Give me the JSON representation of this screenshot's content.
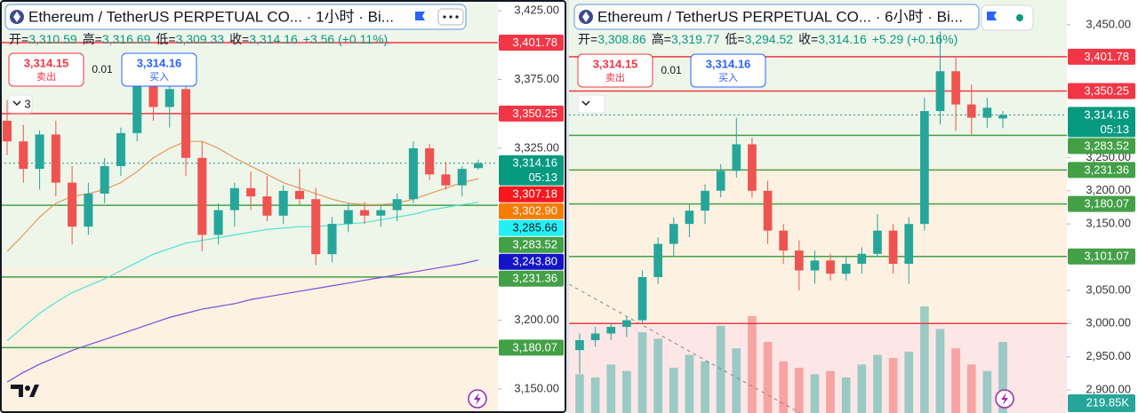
{
  "chart_data": [
    {
      "type": "candlestick",
      "title": "Ethereum / TetherUS PERPETUAL CO... · 1小时 · Bi...",
      "ohlc_labels": [
        "开=",
        "高=",
        "低=",
        "收="
      ],
      "ohlc_value_labels": [
        "3,310.59",
        "3,316.69",
        "3,309.33",
        "3,314.16"
      ],
      "change_label": "+3.56 (+0.11%)",
      "sell_price": "3,314.15",
      "sell_label": "卖出",
      "spread": "0.01",
      "buy_price": "3,314.16",
      "buy_label": "买入",
      "indicator_count": "3",
      "countdown": "05:13",
      "ylim": [
        3132.5,
        3432.8
      ],
      "yticks": [
        {
          "value": 3425,
          "label": "3,425.00"
        },
        {
          "value": 3375,
          "label": "3,375.00"
        },
        {
          "value": 3325,
          "label": "3,325.00"
        },
        {
          "value": 3200,
          "label": "3,200.00"
        },
        {
          "value": 3150,
          "label": "3,150.00"
        }
      ],
      "up_color": "#26a69a",
      "down_color": "#ef5350",
      "candles": [
        [
          3345,
          3360,
          3320,
          3330
        ],
        [
          3330,
          3342,
          3300,
          3310
        ],
        [
          3310,
          3338,
          3295,
          3335
        ],
        [
          3335,
          3345,
          3290,
          3300
        ],
        [
          3300,
          3312,
          3255,
          3268
        ],
        [
          3268,
          3300,
          3262,
          3292
        ],
        [
          3292,
          3318,
          3285,
          3312
        ],
        [
          3312,
          3340,
          3305,
          3336
        ],
        [
          3336,
          3385,
          3330,
          3372
        ],
        [
          3372,
          3380,
          3345,
          3355
        ],
        [
          3355,
          3378,
          3340,
          3368
        ],
        [
          3368,
          3372,
          3305,
          3318
        ],
        [
          3318,
          3330,
          3250,
          3262
        ],
        [
          3262,
          3285,
          3255,
          3280
        ],
        [
          3280,
          3300,
          3268,
          3296
        ],
        [
          3296,
          3308,
          3280,
          3290
        ],
        [
          3290,
          3305,
          3272,
          3276
        ],
        [
          3276,
          3298,
          3270,
          3294
        ],
        [
          3294,
          3310,
          3284,
          3288
        ],
        [
          3288,
          3296,
          3240,
          3248
        ],
        [
          3248,
          3275,
          3242,
          3270
        ],
        [
          3270,
          3285,
          3264,
          3280
        ],
        [
          3280,
          3286,
          3270,
          3276
        ],
        [
          3276,
          3284,
          3268,
          3280
        ],
        [
          3280,
          3292,
          3272,
          3288
        ],
        [
          3288,
          3330,
          3285,
          3325
        ],
        [
          3325,
          3328,
          3302,
          3306
        ],
        [
          3306,
          3315,
          3295,
          3298
        ],
        [
          3298,
          3312,
          3290,
          3310
        ],
        [
          3310.59,
          3316.69,
          3309.33,
          3314.16
        ]
      ],
      "ma_lines": [
        {
          "color": "#e39a5c",
          "values": [
            3250,
            3262,
            3275,
            3285,
            3290,
            3292,
            3295,
            3300,
            3308,
            3318,
            3325,
            3330,
            3330,
            3325,
            3318,
            3312,
            3306,
            3300,
            3296,
            3292,
            3288,
            3285,
            3284,
            3284,
            3285,
            3288,
            3292,
            3296,
            3300,
            3302.9
          ]
        },
        {
          "color": "#4fe3d0",
          "values": [
            3185,
            3195,
            3205,
            3213,
            3220,
            3225,
            3230,
            3236,
            3242,
            3248,
            3252,
            3256,
            3258,
            3260,
            3262,
            3264,
            3266,
            3267,
            3268,
            3268,
            3269,
            3270,
            3271,
            3273,
            3275,
            3277,
            3280,
            3282,
            3284,
            3285.66
          ]
        },
        {
          "color": "#7c4ddb",
          "values": [
            3155,
            3162,
            3168,
            3173,
            3178,
            3182,
            3186,
            3190,
            3194,
            3198,
            3202,
            3205,
            3208,
            3210,
            3212,
            3215,
            3217,
            3219,
            3221,
            3223,
            3225,
            3227,
            3229,
            3231,
            3233,
            3235,
            3237,
            3239,
            3241,
            3243.8
          ]
        }
      ],
      "price_lines": [
        {
          "value": 3401.78,
          "label": "3,401.78",
          "color": "#f23645",
          "line": true
        },
        {
          "value": 3350.25,
          "label": "3,350.25",
          "color": "#f23645",
          "line": true
        },
        {
          "value": 3314.16,
          "label": "3,314.16",
          "color": "#089981",
          "line": true,
          "current": true
        },
        {
          "value": 3307.18,
          "label": "3,307.18",
          "color": "#f7171f",
          "line": false
        },
        {
          "value": 3302.9,
          "label": "3,302.90",
          "color": "#f57c00",
          "line": false
        },
        {
          "value": 3285.66,
          "label": "3,285.66",
          "color": "#22f0f5",
          "text_color": "#131722",
          "line": false
        },
        {
          "value": 3283.52,
          "label": "3,283.52",
          "color": "#43a047",
          "line": true
        },
        {
          "value": 3243.8,
          "label": "3,243.80",
          "color": "#1414c8",
          "line": false
        },
        {
          "value": 3231.36,
          "label": "3,231.36",
          "color": "#43a047",
          "line": true
        },
        {
          "value": 3180.07,
          "label": "3,180.07",
          "color": "#43a047",
          "line": true
        }
      ]
    },
    {
      "type": "candlestick",
      "title": "Ethereum / TetherUS PERPETUAL CO... · 6小时 · Bi...",
      "ohlc_labels": [
        "开=",
        "高=",
        "低=",
        "收="
      ],
      "ohlc_value_labels": [
        "3,308.86",
        "3,319.77",
        "3,294.52",
        "3,314.16"
      ],
      "change_label": "+5.29 (+0.16%)",
      "sell_price": "3,314.15",
      "sell_label": "卖出",
      "spread": "0.01",
      "buy_price": "3,314.16",
      "buy_label": "买入",
      "countdown": "05:13",
      "ylim": [
        2865.3,
        3487.3
      ],
      "yticks": [
        {
          "value": 3450,
          "label": "3,450.00"
        },
        {
          "value": 3250,
          "label": "3,250.00"
        },
        {
          "value": 3200,
          "label": "3,200.00"
        },
        {
          "value": 3150,
          "label": "3,150.00"
        },
        {
          "value": 3050,
          "label": "3,050.00"
        },
        {
          "value": 3000,
          "label": "3,000.00"
        },
        {
          "value": 2950,
          "label": "2,950.00"
        },
        {
          "value": 2900,
          "label": "2,900.00"
        }
      ],
      "up_color": "#26a69a",
      "down_color": "#ef5350",
      "candles": [
        [
          2960,
          2985,
          2925,
          2975
        ],
        [
          2975,
          2995,
          2965,
          2985
        ],
        [
          2985,
          3000,
          2975,
          2995
        ],
        [
          2995,
          3010,
          2980,
          3005
        ],
        [
          3005,
          3080,
          3000,
          3070
        ],
        [
          3070,
          3130,
          3060,
          3120
        ],
        [
          3120,
          3160,
          3100,
          3150
        ],
        [
          3150,
          3180,
          3130,
          3170
        ],
        [
          3170,
          3210,
          3150,
          3200
        ],
        [
          3200,
          3240,
          3190,
          3230
        ],
        [
          3230,
          3310,
          3220,
          3270
        ],
        [
          3270,
          3280,
          3190,
          3200
        ],
        [
          3200,
          3215,
          3120,
          3140
        ],
        [
          3140,
          3150,
          3090,
          3110
        ],
        [
          3110,
          3125,
          3050,
          3080
        ],
        [
          3080,
          3110,
          3060,
          3095
        ],
        [
          3095,
          3105,
          3065,
          3075
        ],
        [
          3075,
          3100,
          3065,
          3090
        ],
        [
          3090,
          3115,
          3075,
          3105
        ],
        [
          3105,
          3165,
          3100,
          3140
        ],
        [
          3140,
          3150,
          3075,
          3090
        ],
        [
          3090,
          3160,
          3060,
          3150
        ],
        [
          3150,
          3340,
          3140,
          3320
        ],
        [
          3320,
          3440,
          3300,
          3380
        ],
        [
          3380,
          3400,
          3290,
          3330
        ],
        [
          3330,
          3360,
          3285,
          3310
        ],
        [
          3310,
          3340,
          3295,
          3325
        ],
        [
          3308.86,
          3319.77,
          3294.52,
          3314.16
        ]
      ],
      "volume": {
        "values": [
          120,
          110,
          150,
          130,
          250,
          230,
          140,
          180,
          160,
          270,
          200,
          300,
          220,
          160,
          140,
          120,
          130,
          110,
          150,
          180,
          170,
          190,
          330,
          260,
          200,
          150,
          130,
          219.85
        ],
        "value_labels": [
          null,
          null,
          null,
          null,
          null,
          null,
          null,
          null,
          null,
          null,
          null,
          null,
          null,
          null,
          null,
          null,
          null,
          null,
          null,
          null,
          null,
          null,
          null,
          null,
          null,
          null,
          null,
          "219.85K"
        ]
      },
      "price_lines": [
        {
          "value": 3401.78,
          "label": "3,401.78",
          "color": "#f23645",
          "line": true
        },
        {
          "value": 3350.25,
          "label": "3,350.25",
          "color": "#f23645",
          "line": true
        },
        {
          "value": 3314.16,
          "label": "3,314.16",
          "color": "#089981",
          "line": true,
          "current": true
        },
        {
          "value": 3283.52,
          "label": "3,283.52",
          "color": "#43a047",
          "line": true
        },
        {
          "value": 3231.36,
          "label": "3,231.36",
          "color": "#43a047",
          "line": true
        },
        {
          "value": 3180.07,
          "label": "3,180.07",
          "color": "#43a047",
          "line": true
        },
        {
          "value": 3101.07,
          "label": "3,101.07",
          "color": "#43a047",
          "line": true
        },
        {
          "value": 3000,
          "color": "#f23645",
          "line": true
        }
      ]
    }
  ]
}
